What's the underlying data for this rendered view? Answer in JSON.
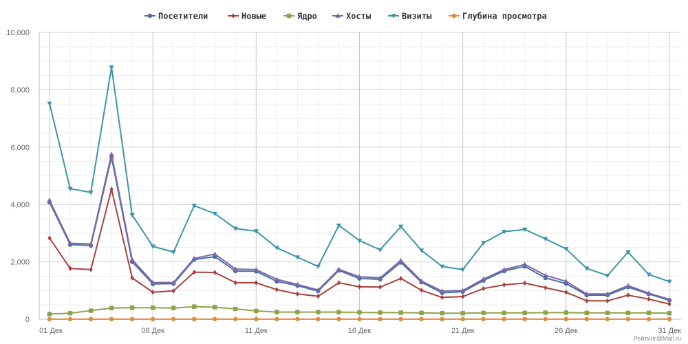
{
  "chart_data": {
    "type": "line",
    "title": "",
    "xlabel": "",
    "ylabel": "",
    "ylim": [
      0,
      10000
    ],
    "grid": true,
    "legend_position": "top",
    "x": [
      "01 Дек",
      "02 Дек",
      "03 Дек",
      "04 Дек",
      "05 Дек",
      "06 Дек",
      "07 Дек",
      "08 Дек",
      "09 Дек",
      "10 Дек",
      "11 Дек",
      "12 Дек",
      "13 Дек",
      "14 Дек",
      "15 Дек",
      "16 Дек",
      "17 Дек",
      "18 Дек",
      "19 Дек",
      "20 Дек",
      "21 Дек",
      "22 Дек",
      "23 Дек",
      "24 Дек",
      "25 Дек",
      "26 Дек",
      "27 Дек",
      "28 Дек",
      "29 Дек",
      "30 Дек",
      "31 Дек"
    ],
    "x_tick_labels": [
      "01 Дек",
      "06 Дек",
      "11 Дек",
      "16 Дек",
      "21 Дек",
      "26 Дек",
      "31 Дек"
    ],
    "y_tick_labels": [
      "0",
      "2,000",
      "4,000",
      "6,000",
      "8,000",
      "10,000"
    ],
    "series": [
      {
        "name": "Посетители",
        "color": "#4a6fa5",
        "marker": "circle",
        "values": [
          4080,
          2600,
          2570,
          5650,
          2000,
          1230,
          1240,
          2080,
          2180,
          1680,
          1670,
          1320,
          1170,
          980,
          1700,
          1420,
          1390,
          1980,
          1290,
          920,
          960,
          1350,
          1680,
          1840,
          1440,
          1240,
          840,
          840,
          1120,
          880,
          660
        ]
      },
      {
        "name": "Новые",
        "color": "#a8413c",
        "marker": "diamond",
        "values": [
          2830,
          1770,
          1730,
          4530,
          1440,
          940,
          990,
          1640,
          1630,
          1270,
          1270,
          1030,
          880,
          800,
          1270,
          1130,
          1120,
          1420,
          1010,
          760,
          790,
          1070,
          1200,
          1260,
          1100,
          940,
          640,
          640,
          840,
          700,
          530
        ]
      },
      {
        "name": "Ядро",
        "color": "#8aa44a",
        "marker": "square",
        "values": [
          180,
          210,
          300,
          390,
          400,
          400,
          390,
          440,
          420,
          360,
          290,
          250,
          250,
          250,
          250,
          240,
          230,
          230,
          220,
          210,
          210,
          220,
          220,
          220,
          230,
          230,
          220,
          220,
          220,
          220,
          210
        ]
      },
      {
        "name": "Хосты",
        "color": "#7b68a6",
        "marker": "triangle",
        "values": [
          4150,
          2650,
          2620,
          5750,
          2080,
          1280,
          1280,
          2120,
          2270,
          1750,
          1730,
          1390,
          1210,
          1020,
          1740,
          1480,
          1440,
          2050,
          1330,
          980,
          1000,
          1400,
          1730,
          1910,
          1530,
          1320,
          880,
          880,
          1170,
          910,
          690
        ]
      },
      {
        "name": "Визиты",
        "color": "#3c94a8",
        "marker": "triangle-down",
        "values": [
          7520,
          4550,
          4420,
          8780,
          3630,
          2540,
          2340,
          3960,
          3680,
          3160,
          3070,
          2490,
          2160,
          1840,
          3270,
          2740,
          2420,
          3230,
          2400,
          1840,
          1730,
          2660,
          3050,
          3130,
          2800,
          2450,
          1770,
          1520,
          2340,
          1560,
          1310
        ]
      },
      {
        "name": "Глубина просмотра",
        "color": "#e08a3c",
        "marker": "circle",
        "values": [
          3,
          3,
          3,
          3,
          3,
          3,
          3,
          3,
          3,
          3,
          3,
          3,
          3,
          3,
          3,
          3,
          3,
          3,
          3,
          3,
          3,
          3,
          3,
          3,
          3,
          3,
          3,
          3,
          3,
          3,
          3
        ]
      }
    ]
  },
  "credit": "Рейтинг@Mail.ru"
}
